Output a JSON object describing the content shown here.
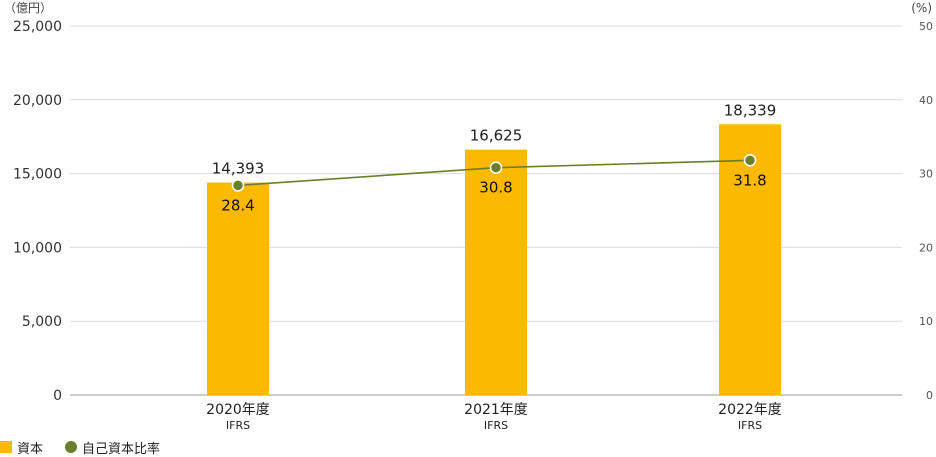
{
  "chart_data": {
    "type": "bar",
    "categories": [
      "2020年度",
      "2021年度",
      "2022年度"
    ],
    "category_sublabels": [
      "IFRS",
      "IFRS",
      "IFRS"
    ],
    "left_axis": {
      "unit_label": "（億円）",
      "ylim": [
        0,
        25000
      ],
      "ticks": [
        "0",
        "5,000",
        "10,000",
        "15,000",
        "20,000",
        "25,000"
      ],
      "tick_values": [
        0,
        5000,
        10000,
        15000,
        20000,
        25000
      ]
    },
    "right_axis": {
      "unit_label": "(%)",
      "ylim": [
        0,
        50
      ],
      "ticks": [
        "0",
        "10",
        "20",
        "30",
        "40",
        "50"
      ],
      "tick_values": [
        0,
        10,
        20,
        30,
        40,
        50
      ]
    },
    "series": [
      {
        "name": "資本",
        "type": "bar",
        "axis": "left",
        "values": [
          14393,
          16625,
          18339
        ],
        "labels": [
          "14,393",
          "16,625",
          "18,339"
        ]
      },
      {
        "name": "自己資本比率",
        "type": "line",
        "axis": "right",
        "values": [
          28.4,
          30.8,
          31.8
        ],
        "labels": [
          "28.4",
          "30.8",
          "31.8"
        ]
      }
    ],
    "grid": true,
    "legend_position": "bottom-left",
    "colors": {
      "bar": "#FBB900",
      "line": "#6B7F2A",
      "grid": "#dcdcdc"
    }
  }
}
